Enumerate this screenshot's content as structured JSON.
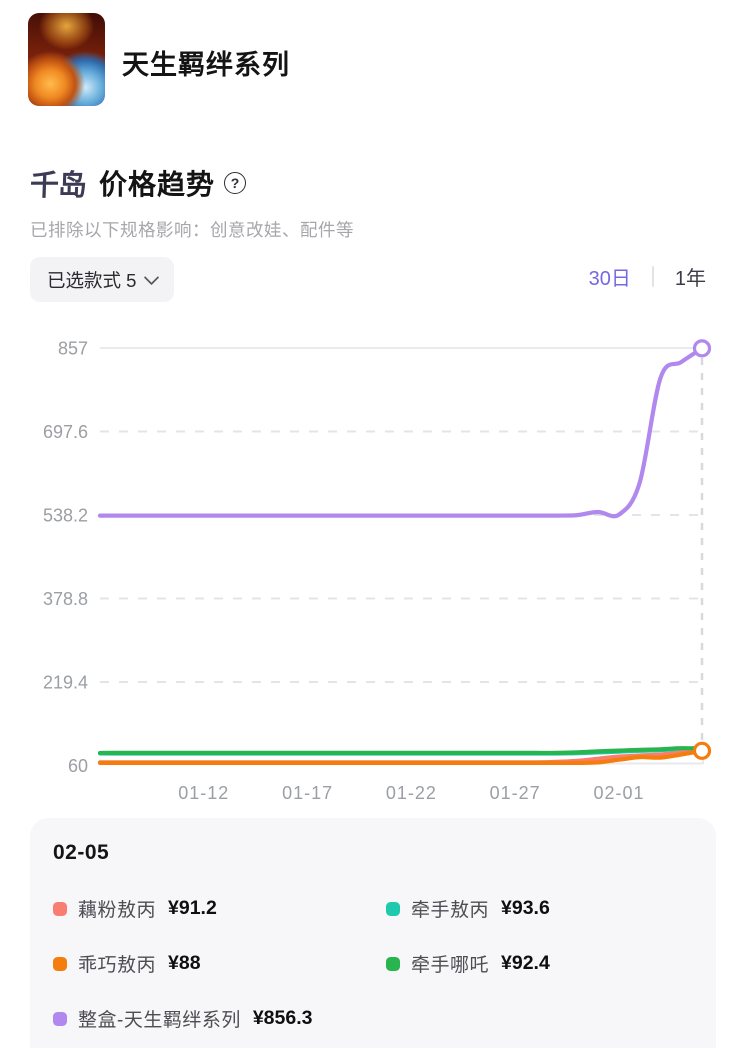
{
  "header": {
    "series_title": "天生羁绊系列"
  },
  "trend": {
    "brand": "千岛",
    "title": "价格趋势",
    "help": "?",
    "subtitle": "已排除以下规格影响：创意改娃、配件等",
    "style_selector": {
      "label": "已选款式 5"
    },
    "tabs": [
      {
        "label": "30日",
        "active": true
      },
      {
        "label": "1年",
        "active": false
      }
    ],
    "accent_color": "#7468e4"
  },
  "chart_data": {
    "type": "line",
    "title": "价格趋势 (30日)",
    "x": [
      "01-07",
      "01-08",
      "01-09",
      "01-10",
      "01-11",
      "01-12",
      "01-13",
      "01-14",
      "01-15",
      "01-16",
      "01-17",
      "01-18",
      "01-19",
      "01-20",
      "01-21",
      "01-22",
      "01-23",
      "01-24",
      "01-25",
      "01-26",
      "01-27",
      "01-28",
      "01-29",
      "01-30",
      "01-31",
      "02-01",
      "02-02",
      "02-03",
      "02-04",
      "02-05"
    ],
    "x_tick_labels": [
      "01-12",
      "01-17",
      "01-22",
      "01-27",
      "02-01"
    ],
    "y_ticks": [
      857,
      697.6,
      538.2,
      378.8,
      219.4,
      60
    ],
    "ylim": [
      60,
      857
    ],
    "grid": "horizontal-dashed, top line solid, crosshair dashed at last point",
    "legend_position": "bottom tooltip panel",
    "series": [
      {
        "name": "牵手敖丙",
        "color": "#1fc9ad",
        "end_marker": false,
        "values": [
          83,
          83,
          83,
          83,
          83,
          83,
          83,
          83,
          83,
          83,
          83,
          83,
          83,
          83,
          83,
          83,
          83,
          83,
          83,
          83,
          83,
          83,
          83,
          83.5,
          85,
          86.5,
          88,
          89.5,
          91.5,
          93.6
        ]
      },
      {
        "name": "藕粉敖丙",
        "color": "#f97e72",
        "end_marker": false,
        "values": [
          66,
          66,
          66,
          66,
          66,
          66,
          66,
          66,
          66,
          66,
          66,
          66,
          66,
          66,
          66,
          66,
          66,
          66,
          66,
          66,
          66,
          66,
          67,
          69,
          73,
          77,
          79,
          81,
          85,
          91.2
        ]
      },
      {
        "name": "牵手哪吒",
        "color": "#28b550",
        "end_marker": false,
        "values": [
          84,
          84,
          84,
          84,
          84,
          84,
          84,
          84,
          84,
          84,
          84,
          84,
          84,
          84,
          84,
          84,
          84,
          84,
          84,
          84,
          84,
          84,
          84,
          85,
          87,
          88.5,
          90,
          91,
          93,
          92.4
        ]
      },
      {
        "name": "乖巧敖丙",
        "color": "#f57d0e",
        "end_marker": true,
        "values": [
          65,
          65,
          65,
          65,
          65,
          65,
          65,
          65,
          65,
          65,
          65,
          65,
          65,
          65,
          65,
          65,
          65,
          65,
          65,
          65,
          65,
          65,
          65,
          65,
          66,
          71,
          76,
          75,
          81,
          88
        ]
      },
      {
        "name": "整盒-天生羁绊系列",
        "color": "#b088ee",
        "end_marker": true,
        "values": [
          537,
          537,
          537,
          537,
          537,
          537,
          537,
          537,
          537,
          537,
          537,
          537,
          537,
          537,
          537,
          537,
          537,
          537,
          537,
          537,
          537,
          537,
          537,
          538,
          544,
          539,
          600,
          800,
          830,
          856.3
        ]
      }
    ]
  },
  "tooltip": {
    "date": "02-05",
    "items": [
      {
        "name": "藕粉敖丙",
        "price": "¥91.2",
        "color": "#f97e72"
      },
      {
        "name": "牵手敖丙",
        "price": "¥93.6",
        "color": "#1fc9ad"
      },
      {
        "name": "乖巧敖丙",
        "price": "¥88",
        "color": "#f57d0e"
      },
      {
        "name": "牵手哪吒",
        "price": "¥92.4",
        "color": "#28b550"
      },
      {
        "name": "整盒-天生羁绊系列",
        "price": "¥856.3",
        "color": "#b088ee"
      }
    ]
  }
}
